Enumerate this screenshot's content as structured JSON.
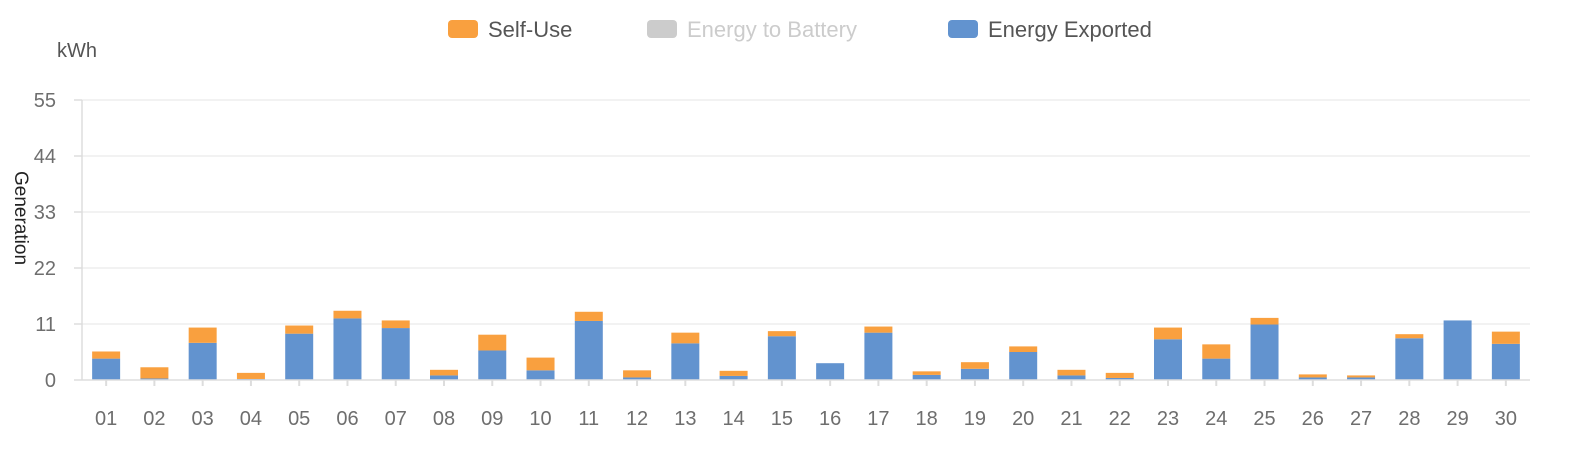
{
  "chart_data": {
    "type": "bar",
    "stacked": true,
    "unit": "kWh",
    "ylabel": "Generation",
    "xlabel": "",
    "ylim": [
      0,
      55
    ],
    "yticks": [
      0,
      11,
      22,
      33,
      44,
      55
    ],
    "grid": true,
    "legend_position": "top-center",
    "categories": [
      "01",
      "02",
      "03",
      "04",
      "05",
      "06",
      "07",
      "08",
      "09",
      "10",
      "11",
      "12",
      "13",
      "14",
      "15",
      "16",
      "17",
      "18",
      "19",
      "20",
      "21",
      "22",
      "23",
      "24",
      "25",
      "26",
      "27",
      "28",
      "29",
      "30"
    ],
    "series": [
      {
        "name": "Energy Exported",
        "color": "#6293cf",
        "active": true,
        "values": [
          4.2,
          0.3,
          7.3,
          0.2,
          9.1,
          12.1,
          10.2,
          0.9,
          5.8,
          1.9,
          11.6,
          0.5,
          7.2,
          0.8,
          8.6,
          3.3,
          9.3,
          1.0,
          2.2,
          5.5,
          0.9,
          0.4,
          8.0,
          4.2,
          10.9,
          0.5,
          0.5,
          8.2,
          11.7,
          7.1
        ]
      },
      {
        "name": "Energy to Battery",
        "color": "#cccccc",
        "active": false,
        "values": [
          0,
          0,
          0,
          0,
          0,
          0,
          0,
          0,
          0,
          0,
          0,
          0,
          0,
          0,
          0,
          0,
          0,
          0,
          0,
          0,
          0,
          0,
          0,
          0,
          0,
          0,
          0,
          0,
          0,
          0
        ]
      },
      {
        "name": "Self-Use",
        "color": "#f9a03f",
        "active": true,
        "values": [
          1.4,
          2.2,
          3.0,
          1.2,
          1.6,
          1.5,
          1.5,
          1.1,
          3.1,
          2.5,
          1.8,
          1.4,
          2.1,
          1.0,
          1.0,
          0,
          1.2,
          0.7,
          1.3,
          1.1,
          1.1,
          1.0,
          2.3,
          2.8,
          1.3,
          0.6,
          0.4,
          0.8,
          0,
          2.4
        ]
      }
    ]
  },
  "legend": [
    {
      "label": "Self-Use",
      "color": "#f9a03f",
      "active": true
    },
    {
      "label": "Energy to Battery",
      "color": "#cccccc",
      "active": false
    },
    {
      "label": "Energy Exported",
      "color": "#6293cf",
      "active": true
    }
  ]
}
